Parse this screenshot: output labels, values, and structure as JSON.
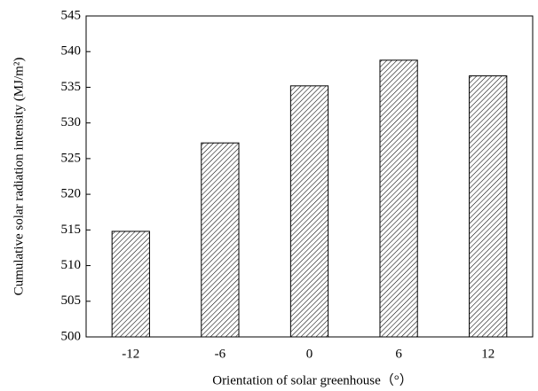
{
  "chart_data": {
    "type": "bar",
    "x_label": "Orientation of solar greenhouse（°）",
    "y_label": "Cumulative solar radiation intensity (MJ/m²)",
    "categories": [
      "-12",
      "-6",
      "0",
      "6",
      "12"
    ],
    "values": [
      514.8,
      527.2,
      535.2,
      538.8,
      536.6
    ],
    "color": "#000000",
    "ylim": [
      500,
      545
    ],
    "yticks": [
      500,
      505,
      510,
      515,
      520,
      525,
      530,
      535,
      540,
      545
    ],
    "grid": false
  }
}
